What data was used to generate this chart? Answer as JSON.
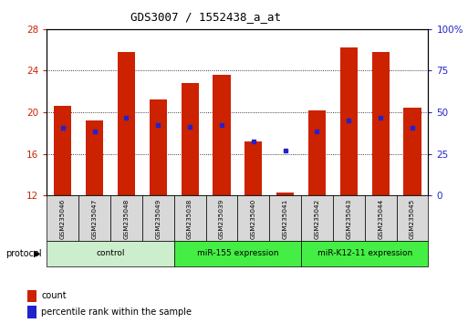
{
  "title": "GDS3007 / 1552438_a_at",
  "samples": [
    "GSM235046",
    "GSM235047",
    "GSM235048",
    "GSM235049",
    "GSM235038",
    "GSM235039",
    "GSM235040",
    "GSM235041",
    "GSM235042",
    "GSM235043",
    "GSM235044",
    "GSM235045"
  ],
  "red_values": [
    20.6,
    19.2,
    25.8,
    21.2,
    22.8,
    23.6,
    17.2,
    12.3,
    20.2,
    26.2,
    25.8,
    20.4
  ],
  "blue_values": [
    18.5,
    18.2,
    19.5,
    18.8,
    18.6,
    18.8,
    17.2,
    16.3,
    18.2,
    19.2,
    19.5,
    18.5
  ],
  "ylim_left": [
    12,
    28
  ],
  "yticks_left": [
    12,
    16,
    20,
    24,
    28
  ],
  "yticks_right": [
    0,
    25,
    50,
    75,
    100
  ],
  "bar_color": "#cc2200",
  "blue_color": "#2222cc",
  "bar_width": 0.55,
  "plot_bg": "#ffffff",
  "grid_ticks": [
    16,
    20,
    24
  ],
  "groups": [
    {
      "label": "control",
      "start": 0,
      "end": 3,
      "color": "#cceecc"
    },
    {
      "label": "miR-155 expression",
      "start": 4,
      "end": 7,
      "color": "#44ee44"
    },
    {
      "label": "miR-K12-11 expression",
      "start": 8,
      "end": 11,
      "color": "#44ee44"
    }
  ]
}
